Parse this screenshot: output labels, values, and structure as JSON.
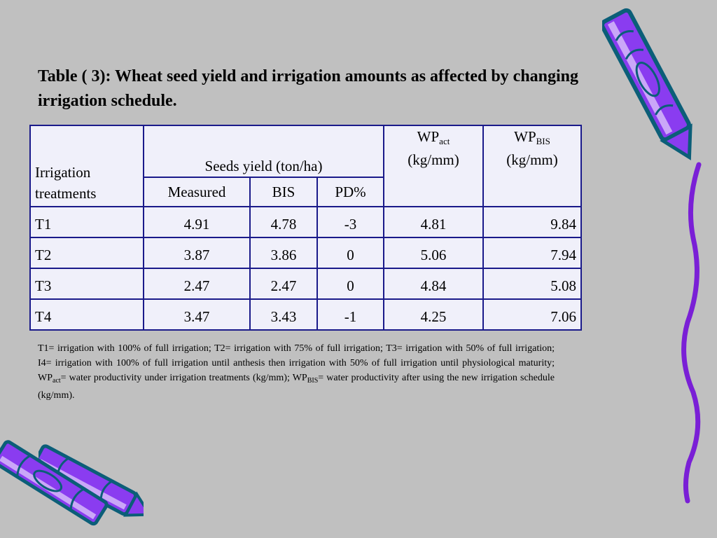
{
  "title": "Table ( 3): Wheat seed yield and irrigation amounts as affected by changing irrigation schedule.",
  "table": {
    "header_irrigation": "Irrigation treatments",
    "header_seeds": "Seeds yield (ton/ha)",
    "header_measured": "Measured",
    "header_bis": "BIS",
    "header_pd": "PD%",
    "header_wp_act_main": "WP",
    "header_wp_act_sub": "act",
    "header_wp_act_unit": "(kg/mm)",
    "header_wp_bis_main": "WP",
    "header_wp_bis_sub": "BIS",
    "header_wp_bis_unit": "(kg/mm)",
    "rows": [
      {
        "treatment": "T1",
        "measured": "4.91",
        "bis": "4.78",
        "pd": "-3",
        "wp_act": "4.81",
        "wp_bis": "9.84"
      },
      {
        "treatment": "T2",
        "measured": "3.87",
        "bis": "3.86",
        "pd": "0",
        "wp_act": "5.06",
        "wp_bis": "7.94"
      },
      {
        "treatment": "T3",
        "measured": "2.47",
        "bis": "2.47",
        "pd": "0",
        "wp_act": "4.84",
        "wp_bis": "5.08"
      },
      {
        "treatment": "T4",
        "measured": "3.47",
        "bis": "3.43",
        "pd": "-1",
        "wp_act": "4.25",
        "wp_bis": "7.06"
      }
    ]
  },
  "note": {
    "part1": "T1= irrigation with 100% of full irrigation; T2= irrigation with 75% of full irrigation; T3= irrigation with 50% of full irrigation; I4= irrigation with 100% of full irrigation until anthesis then irrigation with 50% of full irrigation until physiological maturity; WP",
    "sub1": "act",
    "part2": "= water productivity under irrigation treatments (kg/mm); WP",
    "sub2": "BIS",
    "part3": "= water productivity after using the new irrigation schedule (kg/mm)."
  },
  "decorations": {
    "crayon_colors": {
      "body": "#8a3cf0",
      "outline": "#0b5e78",
      "highlight": "#ffffff",
      "squiggle": "#7a1fd6"
    },
    "items": [
      "crayon-top-right-icon",
      "squiggle-line-right",
      "crayon-bottom-left-icon",
      "crayon-bottom-left-2-icon"
    ]
  }
}
